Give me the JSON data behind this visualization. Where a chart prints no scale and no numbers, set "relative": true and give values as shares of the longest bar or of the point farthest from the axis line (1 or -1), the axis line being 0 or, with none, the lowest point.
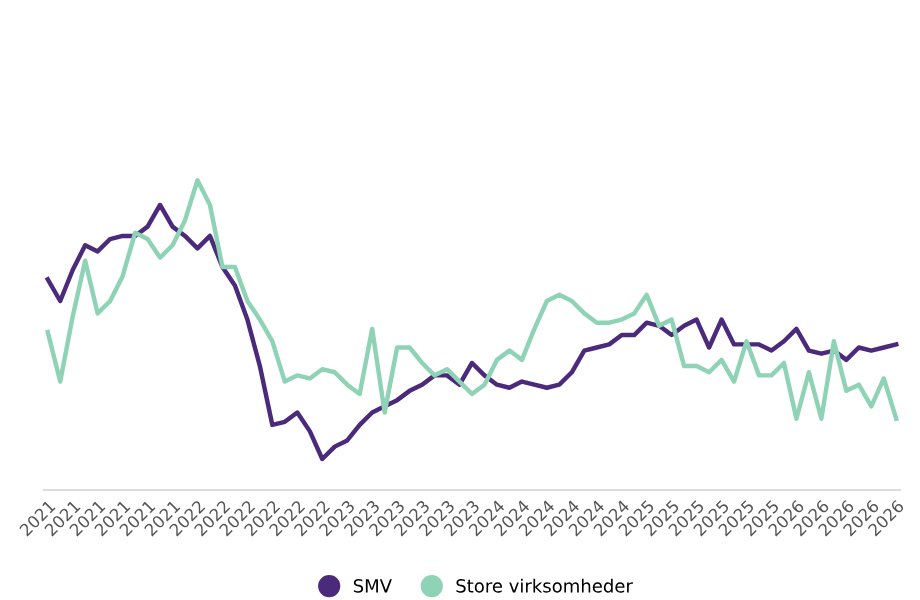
{
  "chart_data": {
    "type": "line",
    "relative": true,
    "legend": "bottom",
    "marker": "none",
    "line_style": "solid",
    "categories": [
      "2021",
      null,
      "2021",
      null,
      "2021",
      null,
      "2021",
      null,
      "2021",
      null,
      "2021",
      null,
      "2022",
      null,
      "2022",
      null,
      "2022",
      null,
      "2022",
      null,
      "2022",
      null,
      "2022",
      null,
      "2023",
      null,
      "2023",
      null,
      "2023",
      null,
      "2023",
      null,
      "2023",
      null,
      "2023",
      null,
      "2024",
      null,
      "2024",
      null,
      "2024",
      null,
      "2024",
      null,
      "2024",
      null,
      "2024",
      null,
      "2025",
      null,
      "2025",
      null,
      "2025",
      null,
      "2025",
      null,
      "2025",
      null,
      "2025",
      null,
      "2026",
      null,
      "2026",
      null,
      "2026",
      null,
      "2026",
      null,
      "2026"
    ],
    "series": [
      {
        "name": "SMV",
        "color": "#4b2a7b",
        "values": [
          0.68,
          0.61,
          0.71,
          0.79,
          0.77,
          0.81,
          0.82,
          0.82,
          0.85,
          0.92,
          0.85,
          0.82,
          0.78,
          0.82,
          0.72,
          0.66,
          0.55,
          0.4,
          0.21,
          0.22,
          0.25,
          0.19,
          0.1,
          0.14,
          0.16,
          0.21,
          0.25,
          0.27,
          0.29,
          0.32,
          0.34,
          0.37,
          0.37,
          0.34,
          0.41,
          0.37,
          0.34,
          0.33,
          0.35,
          0.34,
          0.33,
          0.34,
          0.38,
          0.45,
          0.46,
          0.47,
          0.5,
          0.5,
          0.54,
          0.53,
          0.5,
          0.53,
          0.55,
          0.46,
          0.55,
          0.47,
          0.47,
          0.47,
          0.45,
          0.48,
          0.52,
          0.45,
          0.44,
          0.45,
          0.42,
          0.46,
          0.45,
          0.46,
          0.47
        ]
      },
      {
        "name": "Store virksomheder",
        "color": "#8fd3b6",
        "values": [
          0.51,
          0.35,
          0.56,
          0.74,
          0.57,
          0.61,
          0.69,
          0.83,
          0.81,
          0.75,
          0.79,
          0.87,
          1.0,
          0.92,
          0.72,
          0.72,
          0.61,
          0.55,
          0.48,
          0.35,
          0.37,
          0.36,
          0.39,
          0.38,
          0.34,
          0.31,
          0.52,
          0.25,
          0.46,
          0.46,
          0.41,
          0.37,
          0.39,
          0.35,
          0.31,
          0.34,
          0.42,
          0.45,
          0.42,
          0.52,
          0.61,
          0.63,
          0.61,
          0.57,
          0.54,
          0.54,
          0.55,
          0.57,
          0.63,
          0.53,
          0.55,
          0.4,
          0.4,
          0.38,
          0.42,
          0.35,
          0.48,
          0.37,
          0.37,
          0.41,
          0.23,
          0.38,
          0.23,
          0.48,
          0.32,
          0.34,
          0.27,
          0.36,
          0.23
        ]
      }
    ]
  }
}
